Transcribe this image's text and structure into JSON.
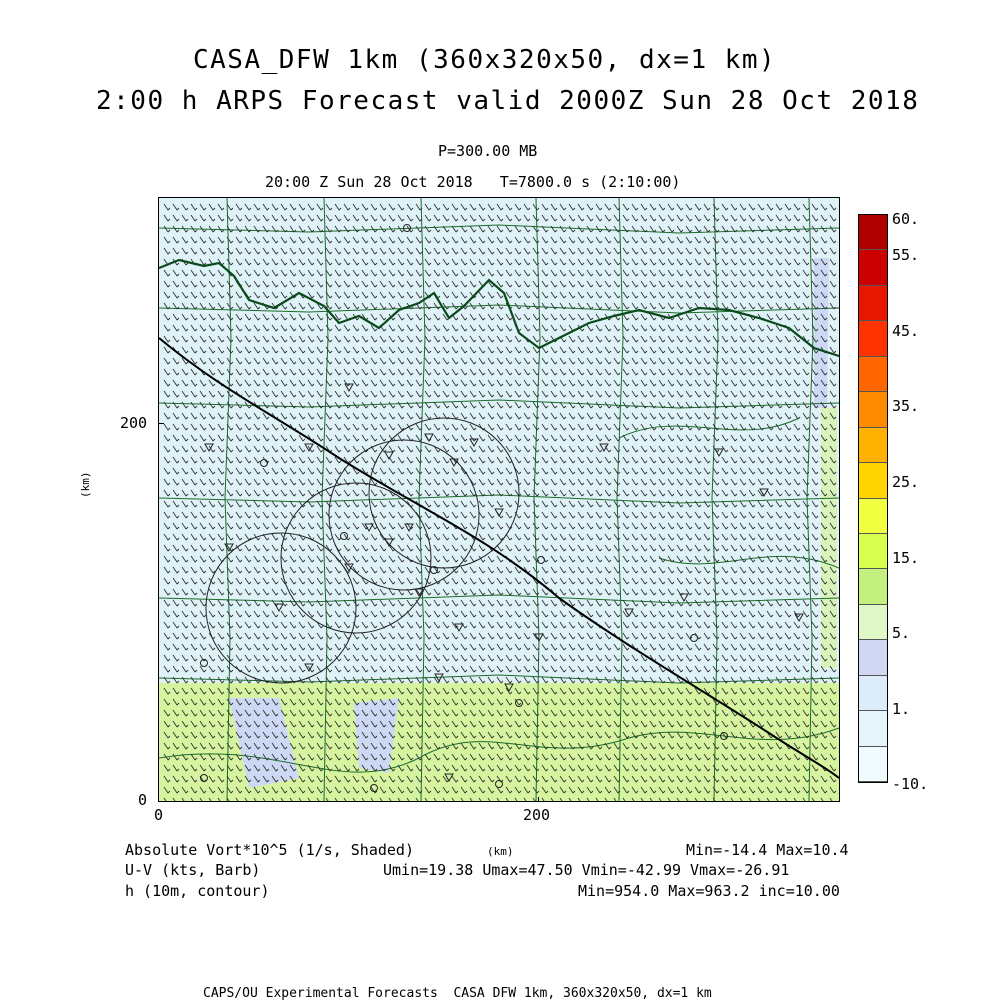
{
  "title": {
    "line1": "CASA_DFW 1km (360x320x50, dx=1 km)",
    "line2": "2:00 h ARPS Forecast valid 2000Z Sun 28 Oct 2018"
  },
  "level": "P=300.00 MB",
  "timeline": "20:00 Z Sun 28 Oct 2018   T=7800.0 s (2:10:00)",
  "axes": {
    "x_ticks": [
      "0",
      "200"
    ],
    "y_ticks": [
      "0",
      "200"
    ],
    "x_label": "(km)",
    "y_label": "(km)",
    "x_range_km": [
      0,
      360
    ],
    "y_range_km": [
      0,
      320
    ]
  },
  "colorbar": {
    "labels": [
      "60.",
      "55.",
      "45.",
      "35.",
      "25.",
      "15.",
      "5.",
      "1.",
      "-10."
    ],
    "bins": [
      "#b00000",
      "#cc0000",
      "#e81800",
      "#ff3300",
      "#ff6600",
      "#ff8c00",
      "#ffb000",
      "#ffd400",
      "#f0ff40",
      "#d8ff50",
      "#c4f080",
      "#e0f8c8",
      "#d0d8f4",
      "#dcecf8",
      "#e4f4fa",
      "#f0fbfd"
    ]
  },
  "legend": {
    "field1": "Absolute Vort*10^5 (1/s, Shaded)",
    "field2": "U-V (kts, Barb)",
    "field3": "h (10m, contour)",
    "stats1": "Min=-14.4 Max=10.4",
    "stats2": "Umin=19.38 Umax=47.50 Vmin=-42.99 Vmax=-26.91",
    "stats3": "Min=954.0 Max=963.2 inc=10.00"
  },
  "footer": "CAPS/OU Experimental Forecasts  CASA DFW 1km, 360x320x50, dx=1 km",
  "map": {
    "background_color": "#dff2f7",
    "low_vort_color": "#d6f4a0",
    "negative_vort_color": "#cdd8f4",
    "boundary_color": "#1a6a2a",
    "river_color": "#0a4a1a"
  }
}
